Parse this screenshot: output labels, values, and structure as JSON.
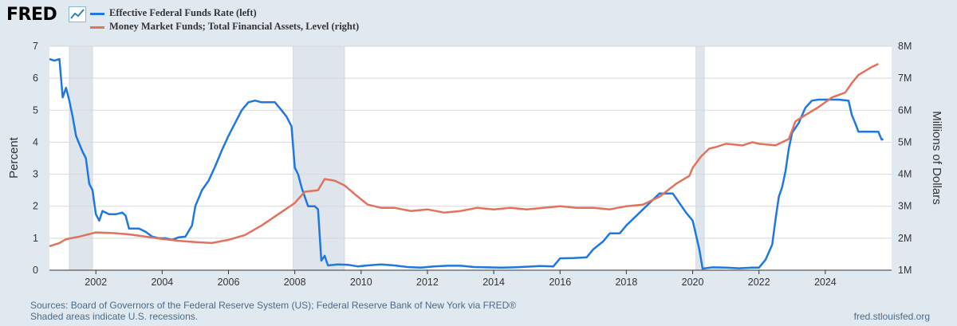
{
  "header": {
    "logo_text": "FRED",
    "logo_icon": "trend-chart-icon"
  },
  "chart_data": {
    "type": "line",
    "series": [
      {
        "name": "Effective Federal Funds Rate (left)",
        "axis": "left",
        "color": "#1f77e0",
        "points": [
          [
            2000.6,
            6.6
          ],
          [
            2000.75,
            6.55
          ],
          [
            2000.9,
            6.6
          ],
          [
            2001.0,
            5.4
          ],
          [
            2001.1,
            5.7
          ],
          [
            2001.2,
            5.3
          ],
          [
            2001.3,
            4.8
          ],
          [
            2001.4,
            4.2
          ],
          [
            2001.5,
            3.95
          ],
          [
            2001.6,
            3.7
          ],
          [
            2001.7,
            3.5
          ],
          [
            2001.8,
            2.7
          ],
          [
            2001.9,
            2.5
          ],
          [
            2002.0,
            1.75
          ],
          [
            2002.1,
            1.55
          ],
          [
            2002.2,
            1.85
          ],
          [
            2002.4,
            1.75
          ],
          [
            2002.6,
            1.75
          ],
          [
            2002.8,
            1.8
          ],
          [
            2002.9,
            1.7
          ],
          [
            2003.0,
            1.3
          ],
          [
            2003.3,
            1.3
          ],
          [
            2003.5,
            1.2
          ],
          [
            2003.7,
            1.05
          ],
          [
            2003.9,
            1.0
          ],
          [
            2004.1,
            1.0
          ],
          [
            2004.3,
            0.95
          ],
          [
            2004.5,
            1.03
          ],
          [
            2004.7,
            1.05
          ],
          [
            2004.9,
            1.4
          ],
          [
            2005.0,
            2.0
          ],
          [
            2005.2,
            2.5
          ],
          [
            2005.4,
            2.8
          ],
          [
            2005.6,
            3.25
          ],
          [
            2005.8,
            3.75
          ],
          [
            2006.0,
            4.2
          ],
          [
            2006.2,
            4.6
          ],
          [
            2006.4,
            5.0
          ],
          [
            2006.6,
            5.25
          ],
          [
            2006.8,
            5.3
          ],
          [
            2007.0,
            5.25
          ],
          [
            2007.2,
            5.25
          ],
          [
            2007.4,
            5.25
          ],
          [
            2007.6,
            5.0
          ],
          [
            2007.75,
            4.8
          ],
          [
            2007.9,
            4.5
          ],
          [
            2008.0,
            3.2
          ],
          [
            2008.1,
            3.0
          ],
          [
            2008.2,
            2.6
          ],
          [
            2008.3,
            2.3
          ],
          [
            2008.4,
            2.0
          ],
          [
            2008.5,
            2.0
          ],
          [
            2008.6,
            2.0
          ],
          [
            2008.7,
            1.9
          ],
          [
            2008.8,
            0.3
          ],
          [
            2008.9,
            0.45
          ],
          [
            2009.0,
            0.15
          ],
          [
            2009.3,
            0.18
          ],
          [
            2009.6,
            0.17
          ],
          [
            2009.9,
            0.12
          ],
          [
            2010.2,
            0.15
          ],
          [
            2010.6,
            0.18
          ],
          [
            2011.0,
            0.15
          ],
          [
            2011.4,
            0.1
          ],
          [
            2011.8,
            0.08
          ],
          [
            2012.2,
            0.12
          ],
          [
            2012.6,
            0.14
          ],
          [
            2013.0,
            0.14
          ],
          [
            2013.4,
            0.1
          ],
          [
            2013.8,
            0.09
          ],
          [
            2014.2,
            0.08
          ],
          [
            2014.6,
            0.09
          ],
          [
            2015.0,
            0.11
          ],
          [
            2015.4,
            0.13
          ],
          [
            2015.8,
            0.12
          ],
          [
            2016.0,
            0.37
          ],
          [
            2016.4,
            0.38
          ],
          [
            2016.8,
            0.4
          ],
          [
            2017.0,
            0.65
          ],
          [
            2017.3,
            0.9
          ],
          [
            2017.5,
            1.15
          ],
          [
            2017.8,
            1.15
          ],
          [
            2018.0,
            1.4
          ],
          [
            2018.3,
            1.7
          ],
          [
            2018.5,
            1.9
          ],
          [
            2018.8,
            2.2
          ],
          [
            2019.0,
            2.4
          ],
          [
            2019.4,
            2.4
          ],
          [
            2019.6,
            2.1
          ],
          [
            2019.8,
            1.8
          ],
          [
            2020.0,
            1.55
          ],
          [
            2020.2,
            0.65
          ],
          [
            2020.3,
            0.05
          ],
          [
            2020.6,
            0.09
          ],
          [
            2021.0,
            0.08
          ],
          [
            2021.4,
            0.06
          ],
          [
            2021.8,
            0.08
          ],
          [
            2022.0,
            0.08
          ],
          [
            2022.2,
            0.33
          ],
          [
            2022.4,
            0.8
          ],
          [
            2022.5,
            1.6
          ],
          [
            2022.6,
            2.3
          ],
          [
            2022.7,
            2.6
          ],
          [
            2022.8,
            3.1
          ],
          [
            2022.9,
            3.8
          ],
          [
            2023.0,
            4.3
          ],
          [
            2023.2,
            4.6
          ],
          [
            2023.4,
            5.08
          ],
          [
            2023.6,
            5.3
          ],
          [
            2023.8,
            5.33
          ],
          [
            2024.0,
            5.33
          ],
          [
            2024.4,
            5.33
          ],
          [
            2024.7,
            5.3
          ],
          [
            2024.8,
            4.85
          ],
          [
            2024.9,
            4.6
          ],
          [
            2025.0,
            4.33
          ],
          [
            2025.4,
            4.33
          ],
          [
            2025.6,
            4.33
          ],
          [
            2025.7,
            4.08
          ],
          [
            2025.75,
            4.1
          ]
        ]
      },
      {
        "name": "Money Market Funds; Total Financial Assets, Level (right)",
        "axis": "right",
        "color": "#e2725b",
        "points": [
          [
            2000.6,
            1.75
          ],
          [
            2000.9,
            1.85
          ],
          [
            2001.1,
            1.97
          ],
          [
            2001.5,
            2.05
          ],
          [
            2002.0,
            2.18
          ],
          [
            2002.5,
            2.16
          ],
          [
            2003.0,
            2.12
          ],
          [
            2003.5,
            2.05
          ],
          [
            2004.0,
            1.98
          ],
          [
            2004.5,
            1.92
          ],
          [
            2005.0,
            1.88
          ],
          [
            2005.5,
            1.85
          ],
          [
            2006.0,
            1.95
          ],
          [
            2006.5,
            2.1
          ],
          [
            2007.0,
            2.4
          ],
          [
            2007.5,
            2.75
          ],
          [
            2008.0,
            3.1
          ],
          [
            2008.3,
            3.45
          ],
          [
            2008.7,
            3.5
          ],
          [
            2008.9,
            3.85
          ],
          [
            2009.2,
            3.8
          ],
          [
            2009.5,
            3.65
          ],
          [
            2009.9,
            3.3
          ],
          [
            2010.2,
            3.05
          ],
          [
            2010.6,
            2.95
          ],
          [
            2011.0,
            2.95
          ],
          [
            2011.5,
            2.85
          ],
          [
            2012.0,
            2.9
          ],
          [
            2012.5,
            2.8
          ],
          [
            2013.0,
            2.85
          ],
          [
            2013.5,
            2.95
          ],
          [
            2014.0,
            2.9
          ],
          [
            2014.5,
            2.95
          ],
          [
            2015.0,
            2.9
          ],
          [
            2015.5,
            2.95
          ],
          [
            2016.0,
            3.0
          ],
          [
            2016.5,
            2.95
          ],
          [
            2017.0,
            2.95
          ],
          [
            2017.5,
            2.9
          ],
          [
            2018.0,
            3.0
          ],
          [
            2018.5,
            3.05
          ],
          [
            2019.0,
            3.3
          ],
          [
            2019.5,
            3.7
          ],
          [
            2019.9,
            3.95
          ],
          [
            2020.0,
            4.2
          ],
          [
            2020.25,
            4.55
          ],
          [
            2020.5,
            4.8
          ],
          [
            2020.7,
            4.85
          ],
          [
            2021.0,
            4.95
          ],
          [
            2021.5,
            4.9
          ],
          [
            2021.8,
            5.0
          ],
          [
            2022.0,
            4.95
          ],
          [
            2022.5,
            4.9
          ],
          [
            2022.9,
            5.1
          ],
          [
            2023.1,
            5.65
          ],
          [
            2023.4,
            5.85
          ],
          [
            2023.8,
            6.1
          ],
          [
            2024.2,
            6.4
          ],
          [
            2024.6,
            6.55
          ],
          [
            2024.8,
            6.85
          ],
          [
            2025.0,
            7.1
          ],
          [
            2025.4,
            7.35
          ],
          [
            2025.6,
            7.45
          ]
        ]
      }
    ],
    "recessions": [
      [
        2001.2,
        2001.9
      ],
      [
        2007.95,
        2009.5
      ],
      [
        2020.1,
        2020.35
      ]
    ],
    "x_ticks": [
      "2002",
      "2004",
      "2006",
      "2008",
      "2010",
      "2012",
      "2014",
      "2016",
      "2018",
      "2020",
      "2022",
      "2024"
    ],
    "x_tick_values": [
      2002,
      2004,
      2006,
      2008,
      2010,
      2012,
      2014,
      2016,
      2018,
      2020,
      2022,
      2024
    ],
    "xlim": [
      2000.6,
      2026.0
    ],
    "y_left_ticks": [
      "0",
      "1",
      "2",
      "3",
      "4",
      "5",
      "6",
      "7"
    ],
    "y_left_values": [
      0,
      1,
      2,
      3,
      4,
      5,
      6,
      7
    ],
    "ylim_left": [
      0,
      7
    ],
    "y_right_ticks": [
      "1M",
      "2M",
      "3M",
      "4M",
      "5M",
      "6M",
      "7M",
      "8M"
    ],
    "y_right_values": [
      1,
      2,
      3,
      4,
      5,
      6,
      7,
      8
    ],
    "ylim_right": [
      1,
      8
    ],
    "ylabel_left": "Percent",
    "ylabel_right": "Millions of Dollars",
    "grid": true
  },
  "footer": {
    "sources": "Sources: Board of Governors of the Federal Reserve System (US); Federal Reserve Bank of New York via FRED®",
    "note": "Shaded areas indicate U.S. recessions.",
    "site": "fred.stlouisfed.org"
  }
}
